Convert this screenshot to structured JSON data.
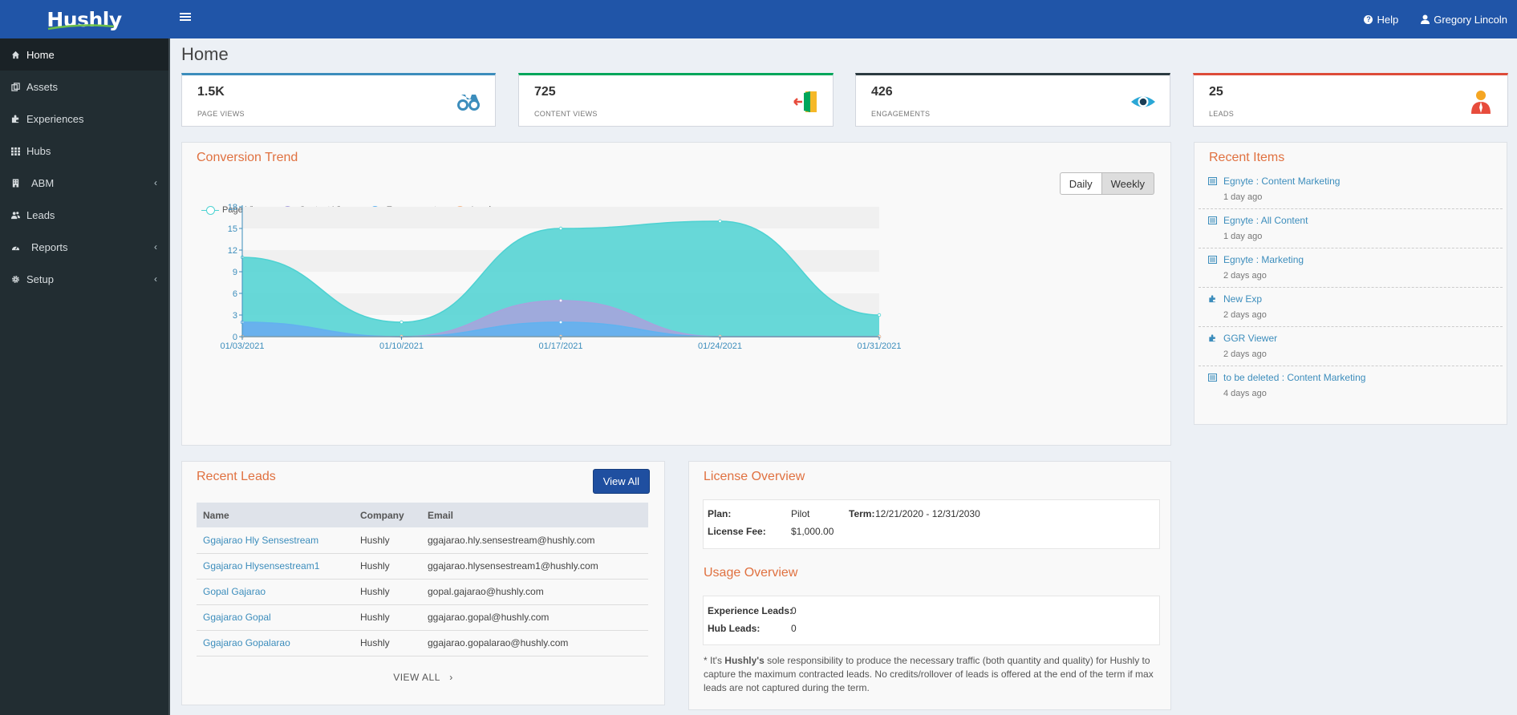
{
  "app": {
    "logo": "Hushly",
    "help_label": "Help",
    "user_name": "Gregory Lincoln"
  },
  "sidebar": {
    "items": [
      {
        "label": "Home",
        "icon": "home-icon",
        "active": true
      },
      {
        "label": "Assets",
        "icon": "assets-icon"
      },
      {
        "label": "Experiences",
        "icon": "puzzle-icon"
      },
      {
        "label": "Hubs",
        "icon": "grid-icon"
      },
      {
        "label": "ABM",
        "icon": "building-icon",
        "chevron": true
      },
      {
        "label": "Leads",
        "icon": "users-icon"
      },
      {
        "label": "Reports",
        "icon": "dashboard-icon",
        "chevron": true
      },
      {
        "label": "Setup",
        "icon": "gear-icon",
        "chevron": true
      }
    ]
  },
  "page": {
    "title": "Home"
  },
  "stats": [
    {
      "value": "1.5K",
      "label": "PAGE VIEWS",
      "color": "#3c8dbc",
      "icon": "binoculars-icon"
    },
    {
      "value": "725",
      "label": "CONTENT VIEWS",
      "color": "#00a65a",
      "icon": "door-icon"
    },
    {
      "value": "426",
      "label": "ENGAGEMENTS",
      "color": "#2c3b41",
      "icon": "eye-icon"
    },
    {
      "value": "25",
      "label": "LEADS",
      "color": "#dd4b39",
      "icon": "user-icon"
    }
  ],
  "conversion": {
    "title": "Conversion Trend",
    "toggle": {
      "daily": "Daily",
      "weekly": "Weekly",
      "selected": "Weekly"
    }
  },
  "chart_data": {
    "type": "area",
    "x": [
      "01/03/2021",
      "01/10/2021",
      "01/17/2021",
      "01/24/2021",
      "01/31/2021"
    ],
    "series": [
      {
        "name": "Page Views",
        "values": [
          11,
          2,
          15,
          16,
          3
        ],
        "color": "#4dd2d2"
      },
      {
        "name": "Content Views",
        "values": [
          2,
          0,
          5,
          0,
          0
        ],
        "color": "#a9a2dd"
      },
      {
        "name": "Engagements",
        "values": [
          2,
          0,
          2,
          0,
          0
        ],
        "color": "#5fb3f0"
      },
      {
        "name": "Leads",
        "values": [
          0,
          0,
          0,
          0,
          0
        ],
        "color": "#f5b78a"
      }
    ],
    "yticks": [
      0,
      3,
      6,
      9,
      12,
      15,
      18
    ],
    "ylim": [
      0,
      18
    ],
    "legend_position": "top-left",
    "grid": true
  },
  "recent_items": {
    "title": "Recent Items",
    "items": [
      {
        "title": "Egnyte : Content Marketing",
        "time": "1 day ago",
        "icon": "list-icon"
      },
      {
        "title": "Egnyte : All Content",
        "time": "1 day ago",
        "icon": "list-icon"
      },
      {
        "title": "Egnyte : Marketing",
        "time": "2 days ago",
        "icon": "list-icon"
      },
      {
        "title": "New Exp",
        "time": "2 days ago",
        "icon": "puzzle-icon"
      },
      {
        "title": "GGR Viewer",
        "time": "2 days ago",
        "icon": "puzzle-icon"
      },
      {
        "title": "to be deleted : Content Marketing",
        "time": "4 days ago",
        "icon": "list-icon"
      }
    ]
  },
  "recent_leads": {
    "title": "Recent Leads",
    "view_all_button": "View All",
    "view_all_link": "VIEW ALL",
    "columns": [
      "Name",
      "Company",
      "Email"
    ],
    "rows": [
      [
        "Ggajarao Hly Sensestream",
        "Hushly",
        "ggajarao.hly.sensestream@hushly.com"
      ],
      [
        "Ggajarao Hlysensestream1",
        "Hushly",
        "ggajarao.hlysensestream1@hushly.com"
      ],
      [
        "Gopal Gajarao",
        "Hushly",
        "gopal.gajarao@hushly.com"
      ],
      [
        "Ggajarao Gopal",
        "Hushly",
        "ggajarao.gopal@hushly.com"
      ],
      [
        "Ggajarao Gopalarao",
        "Hushly",
        "ggajarao.gopalarao@hushly.com"
      ]
    ]
  },
  "license": {
    "title": "License Overview",
    "plan_label": "Plan:",
    "plan": "Pilot",
    "term_label": "Term:",
    "term": "12/21/2020 - 12/31/2030",
    "fee_label": "License Fee:",
    "fee": "$1,000.00"
  },
  "usage": {
    "title": "Usage Overview",
    "exp_leads_label": "Experience Leads:",
    "exp_leads": "0",
    "hub_leads_label": "Hub Leads:",
    "hub_leads": "0",
    "note_prefix": "* It's ",
    "note_bold": "Hushly's",
    "note_rest": " sole responsibility to produce the necessary traffic (both quantity and quality) for Hushly to capture the maximum contracted leads. No credits/rollover of leads is offered at the end of the term if max leads are not captured during the term."
  }
}
